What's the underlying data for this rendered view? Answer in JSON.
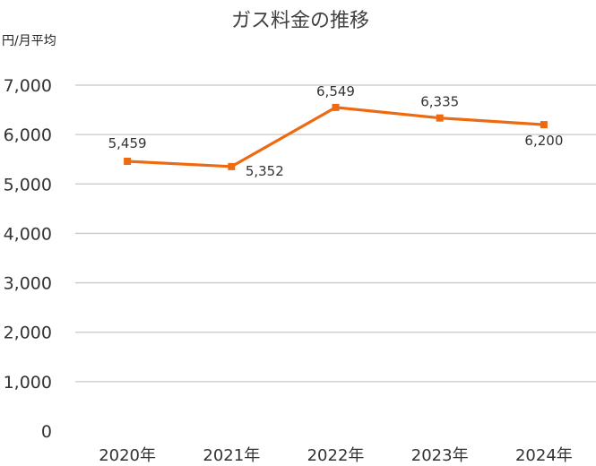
{
  "chart_data": {
    "type": "line",
    "title": "ガス料金の推移",
    "unit_label": "円/月平均",
    "categories": [
      "2020年",
      "2021年",
      "2022年",
      "2023年",
      "2024年"
    ],
    "series": [
      {
        "values": [
          5459,
          5352,
          6549,
          6335,
          6200
        ],
        "color": "#EE6A10"
      }
    ],
    "data_labels": [
      "5,459",
      "5,352",
      "6,549",
      "6,335",
      "6,200"
    ],
    "y_ticks": [
      "0",
      "1,000",
      "2,000",
      "3,000",
      "4,000",
      "5,000",
      "6,000",
      "7,000"
    ],
    "ylim": [
      0,
      7000
    ],
    "grid": true,
    "legend": "none"
  }
}
